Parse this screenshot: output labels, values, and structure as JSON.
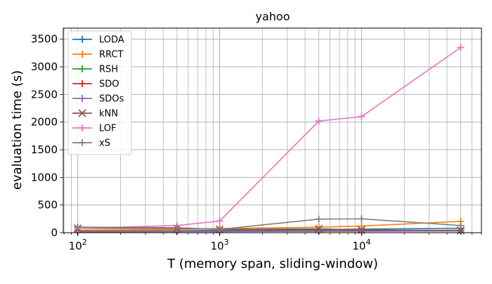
{
  "chart_data": {
    "type": "line",
    "title": "yahoo",
    "xlabel": "T (memory span, sliding-window)",
    "ylabel": "evaluation time (s)",
    "x_scale": "log",
    "xlim": [
      79,
      70000
    ],
    "ylim": [
      0,
      3700
    ],
    "x_ticks": [
      100,
      1000,
      10000
    ],
    "x_tick_labels": [
      {
        "base": "10",
        "exp": "2"
      },
      {
        "base": "10",
        "exp": "3"
      },
      {
        "base": "10",
        "exp": "4"
      }
    ],
    "y_ticks": [
      0,
      500,
      1000,
      1500,
      2000,
      2500,
      3000,
      3500
    ],
    "y_tick_labels": [
      "0",
      "500",
      "1000",
      "1500",
      "2000",
      "2500",
      "3000",
      "3500"
    ],
    "grid": true,
    "grid_minor_x": true,
    "legend_position": "upper-left",
    "x": [
      100,
      500,
      1000,
      5000,
      10000,
      50000
    ],
    "series": [
      {
        "name": "LODA",
        "color": "#1f77b4",
        "marker": "plus",
        "values": [
          30,
          35,
          40,
          55,
          65,
          80
        ]
      },
      {
        "name": "RRCT",
        "color": "#ff7f0e",
        "marker": "plus",
        "values": [
          45,
          60,
          75,
          100,
          120,
          205
        ]
      },
      {
        "name": "RSH",
        "color": "#2ca02c",
        "marker": "plus",
        "values": [
          25,
          30,
          30,
          40,
          40,
          45
        ]
      },
      {
        "name": "SDO",
        "color": "#d62728",
        "marker": "plus",
        "values": [
          20,
          25,
          25,
          30,
          30,
          35
        ]
      },
      {
        "name": "SDOs",
        "color": "#9467bd",
        "marker": "plus",
        "values": [
          15,
          20,
          20,
          25,
          25,
          30
        ]
      },
      {
        "name": "kNN",
        "color": "#8c564b",
        "marker": "x",
        "values": [
          80,
          80,
          60,
          70,
          50,
          40
        ]
      },
      {
        "name": "LOF",
        "color": "#e377c2",
        "marker": "plus",
        "values": [
          80,
          130,
          210,
          2020,
          2100,
          3350
        ]
      },
      {
        "name": "xS",
        "color": "#7f7f7f",
        "marker": "plus",
        "values": [
          100,
          90,
          60,
          245,
          250,
          130
        ]
      }
    ]
  }
}
